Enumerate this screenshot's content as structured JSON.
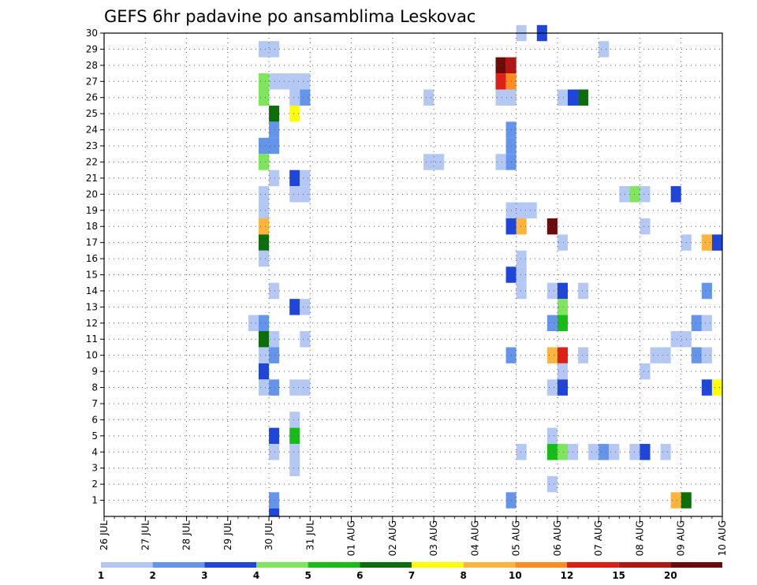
{
  "chart_data": {
    "type": "heatmap",
    "title": "GEFS 6hr padavine po ansamblima Leskovac",
    "x_tick_labels": [
      "26 JUL",
      "27 JUL",
      "28 JUL",
      "29 JUL",
      "30 JUL",
      "31 JUL",
      "01 AUG",
      "02 AUG",
      "03 AUG",
      "04 AUG",
      "05 AUG",
      "06 AUG",
      "07 AUG",
      "08 AUG",
      "09 AUG",
      "10 AUG"
    ],
    "y_tick_labels": [
      "1",
      "2",
      "3",
      "4",
      "5",
      "6",
      "7",
      "8",
      "9",
      "10",
      "11",
      "12",
      "13",
      "14",
      "15",
      "16",
      "17",
      "18",
      "19",
      "20",
      "21",
      "22",
      "23",
      "24",
      "25",
      "26",
      "27",
      "28",
      "29",
      "30"
    ],
    "x_range": [
      "26 JUL 00Z",
      "10 AUG 00Z"
    ],
    "x_step_hours": 6,
    "y_range": [
      0,
      30
    ],
    "grid": true,
    "colorbar": {
      "placement": "bottom",
      "labels": [
        "1",
        "2",
        "3",
        "4",
        "5",
        "6",
        "7",
        "8",
        "10",
        "12",
        "15",
        "20"
      ],
      "colors": [
        "#b4c8f5",
        "#6495ed",
        "#1e46dc",
        "#7de65a",
        "#14be14",
        "#0a6e0a",
        "#ffff00",
        "#ffb43c",
        "#ff8c1e",
        "#e11e14",
        "#b41414",
        "#6e0a0a"
      ]
    },
    "cells": [
      [
        30,
        10.0,
        1
      ],
      [
        30,
        10.5,
        3
      ],
      [
        29,
        3.75,
        1
      ],
      [
        29,
        4.0,
        1
      ],
      [
        29,
        12.0,
        1
      ],
      [
        29,
        26.75,
        1
      ],
      [
        29,
        29.0,
        3
      ],
      [
        28,
        9.5,
        12
      ],
      [
        28,
        9.75,
        11
      ],
      [
        28,
        15.25,
        4
      ],
      [
        28,
        15.5,
        5
      ],
      [
        28,
        26.75,
        8
      ],
      [
        27,
        3.75,
        4
      ],
      [
        27,
        4.0,
        1
      ],
      [
        27,
        4.25,
        1
      ],
      [
        27,
        4.5,
        1
      ],
      [
        27,
        4.75,
        1
      ],
      [
        27,
        9.5,
        10
      ],
      [
        27,
        9.75,
        9
      ],
      [
        26,
        3.75,
        4
      ],
      [
        26,
        4.5,
        1
      ],
      [
        26,
        4.75,
        2
      ],
      [
        26,
        7.75,
        1
      ],
      [
        26,
        9.5,
        1
      ],
      [
        26,
        9.75,
        1
      ],
      [
        26,
        11.0,
        1
      ],
      [
        26,
        11.25,
        3
      ],
      [
        26,
        11.5,
        6
      ],
      [
        26,
        26.75,
        2
      ],
      [
        26,
        27.0,
        1
      ],
      [
        25,
        4.0,
        6
      ],
      [
        25,
        4.5,
        7
      ],
      [
        24,
        4.0,
        2
      ],
      [
        24,
        9.75,
        2
      ],
      [
        23,
        3.75,
        2
      ],
      [
        23,
        4.0,
        2
      ],
      [
        23,
        9.75,
        2
      ],
      [
        23,
        23.0,
        1
      ],
      [
        23,
        23.0,
        3
      ],
      [
        23,
        23.25,
        7
      ],
      [
        23,
        23.5,
        5
      ],
      [
        23,
        23.75,
        1
      ],
      [
        22,
        3.75,
        4
      ],
      [
        22,
        7.75,
        1
      ],
      [
        22,
        8.0,
        1
      ],
      [
        22,
        9.5,
        1
      ],
      [
        22,
        9.75,
        2
      ],
      [
        22,
        22.25,
        1
      ],
      [
        22,
        22.75,
        2
      ],
      [
        22,
        28.75,
        1
      ],
      [
        22,
        29.0,
        2
      ],
      [
        22,
        29.75,
        1
      ],
      [
        22,
        30.0,
        5
      ],
      [
        21,
        4.0,
        1
      ],
      [
        21,
        4.5,
        3
      ],
      [
        21,
        4.75,
        1
      ],
      [
        20,
        3.75,
        1
      ],
      [
        20,
        4.5,
        1
      ],
      [
        20,
        4.75,
        1
      ],
      [
        20,
        12.5,
        1
      ],
      [
        20,
        12.75,
        4
      ],
      [
        20,
        13.0,
        1
      ],
      [
        20,
        13.75,
        3
      ],
      [
        20,
        28.75,
        5
      ],
      [
        20,
        29.0,
        1
      ],
      [
        20,
        29.75,
        1
      ],
      [
        20,
        30.0,
        2
      ],
      [
        19,
        3.75,
        1
      ],
      [
        19,
        9.75,
        1
      ],
      [
        19,
        10.0,
        1
      ],
      [
        19,
        10.25,
        1
      ],
      [
        18,
        3.75,
        8
      ],
      [
        18,
        9.75,
        3
      ],
      [
        18,
        10.0,
        8
      ],
      [
        18,
        10.75,
        12
      ],
      [
        18,
        13.0,
        1
      ],
      [
        17,
        3.75,
        6
      ],
      [
        17,
        11.0,
        1
      ],
      [
        17,
        14.0,
        1
      ],
      [
        17,
        14.5,
        8
      ],
      [
        17,
        14.75,
        3
      ],
      [
        17,
        26.5,
        2
      ],
      [
        17,
        26.75,
        1
      ],
      [
        17,
        27.75,
        1
      ],
      [
        17,
        30.0,
        3
      ],
      [
        16,
        3.75,
        1
      ],
      [
        16,
        10.0,
        1
      ],
      [
        16,
        22.0,
        2
      ],
      [
        16,
        22.25,
        6
      ],
      [
        16,
        22.5,
        2
      ],
      [
        16,
        22.75,
        3
      ],
      [
        15,
        9.75,
        3
      ],
      [
        15,
        10.0,
        1
      ],
      [
        14,
        4.0,
        1
      ],
      [
        14,
        10.0,
        1
      ],
      [
        14,
        10.75,
        1
      ],
      [
        14,
        11.0,
        3
      ],
      [
        14,
        11.5,
        1
      ],
      [
        14,
        14.5,
        2
      ],
      [
        14,
        15.0,
        1
      ],
      [
        13,
        4.5,
        3
      ],
      [
        13,
        4.75,
        1
      ],
      [
        13,
        11.0,
        4
      ],
      [
        12,
        3.5,
        1
      ],
      [
        12,
        3.75,
        2
      ],
      [
        12,
        10.75,
        2
      ],
      [
        12,
        11.0,
        5
      ],
      [
        12,
        14.25,
        2
      ],
      [
        12,
        14.5,
        1
      ],
      [
        11,
        3.75,
        6
      ],
      [
        11,
        4.0,
        1
      ],
      [
        11,
        4.75,
        1
      ],
      [
        11,
        13.75,
        1
      ],
      [
        11,
        14.0,
        1
      ],
      [
        10,
        3.75,
        1
      ],
      [
        10,
        4.0,
        2
      ],
      [
        10,
        9.75,
        2
      ],
      [
        10,
        10.75,
        8
      ],
      [
        10,
        11.0,
        10
      ],
      [
        10,
        11.5,
        1
      ],
      [
        10,
        13.25,
        1
      ],
      [
        10,
        13.5,
        1
      ],
      [
        10,
        14.25,
        2
      ],
      [
        10,
        14.5,
        1
      ],
      [
        10,
        28.75,
        1
      ],
      [
        10,
        29.75,
        2
      ],
      [
        10,
        30.0,
        1
      ],
      [
        9,
        3.75,
        3
      ],
      [
        9,
        11.0,
        1
      ],
      [
        9,
        13.0,
        1
      ],
      [
        8,
        3.75,
        1
      ],
      [
        8,
        4.0,
        2
      ],
      [
        8,
        4.5,
        1
      ],
      [
        8,
        4.75,
        1
      ],
      [
        8,
        10.75,
        1
      ],
      [
        8,
        11.0,
        3
      ],
      [
        8,
        14.5,
        3
      ],
      [
        8,
        14.75,
        7
      ],
      [
        8,
        23.75,
        1
      ],
      [
        8,
        27.0,
        2
      ],
      [
        8,
        28.75,
        2
      ],
      [
        8,
        29.0,
        10
      ],
      [
        7,
        26.5,
        2
      ],
      [
        7,
        26.75,
        8
      ],
      [
        7,
        27.0,
        4
      ],
      [
        7,
        28.75,
        3
      ],
      [
        7,
        29.0,
        4
      ],
      [
        6,
        4.5,
        1
      ],
      [
        5,
        4.0,
        3
      ],
      [
        5,
        4.5,
        5
      ],
      [
        5,
        10.75,
        1
      ],
      [
        5,
        26.75,
        5
      ],
      [
        5,
        27.25,
        3
      ],
      [
        5,
        27.5,
        1
      ],
      [
        5,
        27.75,
        7
      ],
      [
        5,
        28.0,
        12
      ],
      [
        5,
        28.25,
        4
      ],
      [
        5,
        28.5,
        3
      ],
      [
        5,
        28.75,
        8
      ],
      [
        4,
        4.0,
        1
      ],
      [
        4,
        4.5,
        1
      ],
      [
        4,
        10.0,
        1
      ],
      [
        4,
        10.75,
        5
      ],
      [
        4,
        11.0,
        4
      ],
      [
        4,
        11.25,
        1
      ],
      [
        4,
        11.75,
        1
      ],
      [
        4,
        12.0,
        2
      ],
      [
        4,
        12.25,
        1
      ],
      [
        4,
        12.75,
        1
      ],
      [
        4,
        13.0,
        3
      ],
      [
        4,
        13.5,
        1
      ],
      [
        4,
        27.75,
        7
      ],
      [
        4,
        28.0,
        2
      ],
      [
        3,
        4.5,
        1
      ],
      [
        3,
        26.5,
        5
      ],
      [
        3,
        26.75,
        1
      ],
      [
        2,
        10.75,
        1
      ],
      [
        2,
        23.75,
        1
      ],
      [
        1,
        4.0,
        2
      ],
      [
        1,
        9.75,
        2
      ],
      [
        1,
        13.75,
        8
      ],
      [
        1,
        14.0,
        6
      ],
      [
        0,
        4.0,
        3
      ]
    ]
  }
}
